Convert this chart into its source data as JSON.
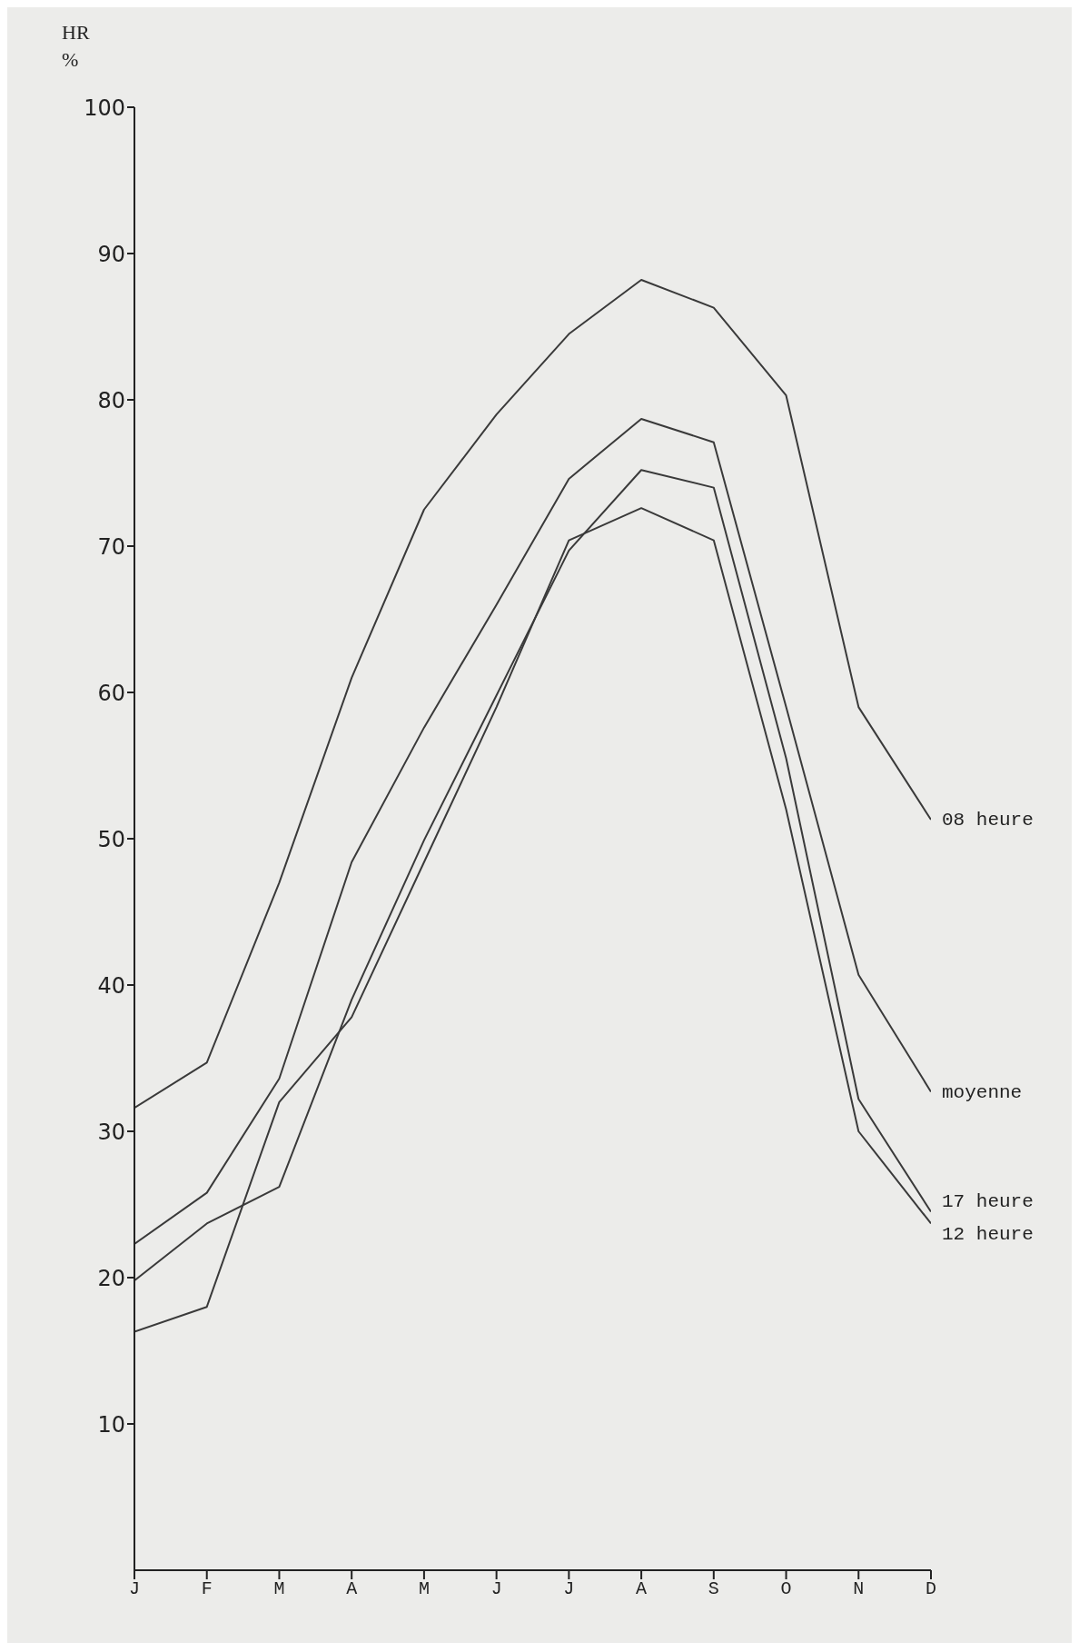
{
  "chart_data": {
    "type": "line",
    "ylabel": "HR %",
    "categories": [
      "J",
      "F",
      "M",
      "A",
      "M",
      "J",
      "J",
      "A",
      "S",
      "O",
      "N",
      "D"
    ],
    "series": [
      {
        "name": "08 heure",
        "color": "#3a3a3a",
        "values": [
          31.6,
          34.7,
          47,
          61,
          72.5,
          79,
          84.5,
          88.2,
          86.3,
          80.3,
          59,
          51.3
        ]
      },
      {
        "name": "moyenne",
        "color": "#3a3a3a",
        "values": [
          22.3,
          25.8,
          33.6,
          48.4,
          57.6,
          66,
          74.6,
          78.7,
          77.1,
          59,
          40.7,
          32.7
        ]
      },
      {
        "name": "17 heure",
        "color": "#3a3a3a",
        "values": [
          19.8,
          23.7,
          26.2,
          39,
          49.9,
          59.8,
          69.7,
          75.2,
          74,
          55.5,
          32.2,
          24.5
        ]
      },
      {
        "name": "12 heure",
        "color": "#3a3a3a",
        "values": [
          16.3,
          18,
          32,
          37.8,
          48.4,
          59,
          70.4,
          72.6,
          70.4,
          52,
          30,
          23.7
        ]
      }
    ],
    "ylim": [
      0,
      100
    ],
    "yticks": [
      10,
      20,
      30,
      40,
      50,
      60,
      70,
      80,
      90,
      100
    ],
    "grid": false,
    "legend": false,
    "marker": "none",
    "line_style": "solid"
  }
}
